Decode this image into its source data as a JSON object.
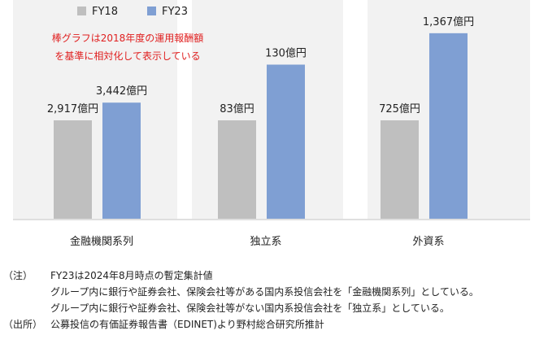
{
  "chart_data": {
    "type": "bar",
    "categories": [
      "金融機関系列",
      "独立系",
      "外資系"
    ],
    "series": [
      {
        "name": "FY18",
        "values": [
          2917,
          83,
          725
        ],
        "labels": [
          "2,917億円",
          "83億円",
          "725億円"
        ],
        "color": "#bfbfbf"
      },
      {
        "name": "FY23",
        "values": [
          3442,
          130,
          1367
        ],
        "labels": [
          "3,442億円",
          "130億円",
          "1,367億円"
        ],
        "color": "#7f9fd3"
      }
    ],
    "relative_to": "FY18",
    "annotation": [
      "棒グラフは2018年度の運用報酬額",
      "を基準に相対化して表示している"
    ],
    "annotation_color": "#e02020",
    "grid": false,
    "legend_position": "top-left"
  },
  "notes": [
    {
      "tag": "（注）",
      "text": "FY23は2024年8月時点の暫定集計値"
    },
    {
      "tag": "",
      "text": "グループ内に銀行や証券会社、保険会社等がある国内系投信会社を「金融機関系列」としている。"
    },
    {
      "tag": "",
      "text": "グループ内に銀行や証券会社、保険会社等がない国内系投信会社を「独立系」としている。"
    },
    {
      "tag": "（出所）",
      "text": "公募投信の有価証券報告書（EDINET)より野村総合研究所推計"
    }
  ]
}
